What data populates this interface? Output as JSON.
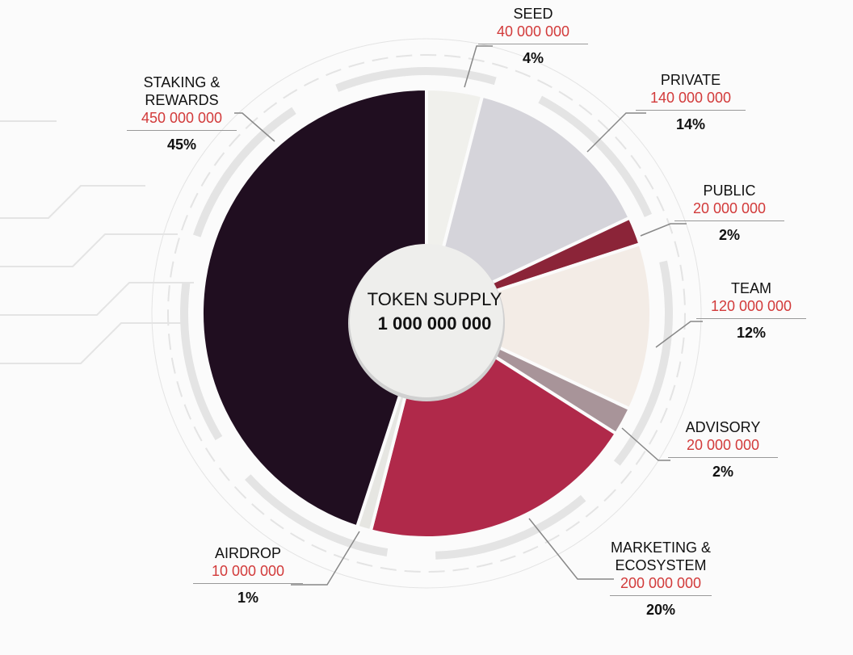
{
  "chart_data": {
    "type": "pie",
    "categories": [
      "SEED",
      "PRIVATE",
      "PUBLIC",
      "TEAM",
      "ADVISORY",
      "MARKETING & ECOSYSTEM",
      "AIRDROP",
      "STAKING & REWARDS"
    ],
    "values": [
      4,
      14,
      2,
      12,
      2,
      20,
      1,
      45
    ],
    "value_labels": [
      "4%",
      "14%",
      "2%",
      "12%",
      "2%",
      "20%",
      "1%",
      "45%"
    ],
    "amounts": [
      {
        "value": 40000000,
        "label": "40 000 000"
      },
      {
        "value": 140000000,
        "label": "140 000 000"
      },
      {
        "value": 20000000,
        "label": "20 000 000"
      },
      {
        "value": 120000000,
        "label": "120 000 000"
      },
      {
        "value": 20000000,
        "label": "20 000 000"
      },
      {
        "value": 200000000,
        "label": "200 000 000"
      },
      {
        "value": 10000000,
        "label": "10 000 000"
      },
      {
        "value": 450000000,
        "label": "450 000 000"
      }
    ],
    "colors": [
      "#f0f0ec",
      "#d5d4da",
      "#8b2438",
      "#f3ece6",
      "#a89499",
      "#b0294a",
      "#e6e6e2",
      "#200e20"
    ],
    "center_title": "TOKEN SUPPLY",
    "total": {
      "value": 1000000000,
      "label": "1 000 000 000"
    }
  }
}
